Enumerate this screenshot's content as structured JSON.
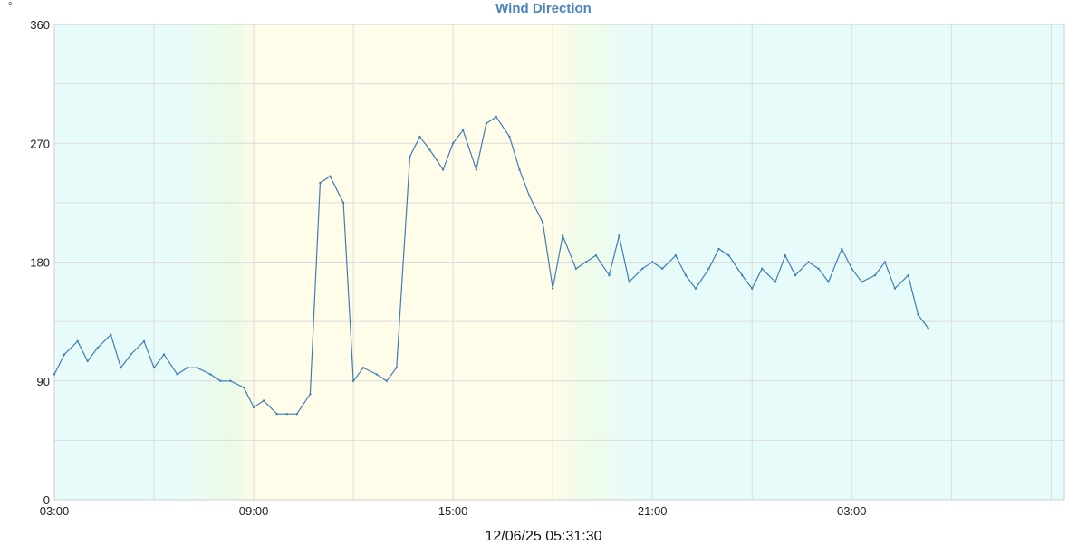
{
  "chart_data": {
    "type": "line",
    "title": "Wind Direction",
    "unit_label": "°",
    "timestamp": "12/06/25 05:31:30",
    "xlabel": "",
    "ylabel": "",
    "ylim": [
      0,
      360
    ],
    "y_ticks": [
      "0",
      "90",
      "180",
      "270",
      "360"
    ],
    "x_range_hours": [
      3.0,
      33.4
    ],
    "x_ticks": [
      {
        "hour": 3,
        "label": "03:00"
      },
      {
        "hour": 9,
        "label": "09:00"
      },
      {
        "hour": 15,
        "label": "15:00"
      },
      {
        "hour": 21,
        "label": "21:00"
      },
      {
        "hour": 27,
        "label": "03:00"
      }
    ],
    "grid": true,
    "colors": {
      "line": "#3f7db5",
      "title": "#4a84bd",
      "grid": "#dcdcdc",
      "night_bg": "#e8fbfb",
      "day_bg": "#fffde9"
    },
    "series": [
      {
        "hours": [
          3.0,
          3.3,
          3.7,
          4.0,
          4.3,
          4.7,
          5.0,
          5.3,
          5.7,
          6.0,
          6.3,
          6.7,
          7.0,
          7.3,
          7.7,
          8.0,
          8.3,
          8.7,
          9.0,
          9.3,
          9.7,
          10.0,
          10.3,
          10.7,
          11.0,
          11.3,
          11.7,
          12.0,
          12.3,
          12.7,
          13.0,
          13.3,
          13.7,
          14.0,
          14.3,
          14.7,
          15.0,
          15.3,
          15.7,
          16.0,
          16.3,
          16.7,
          17.0,
          17.3,
          17.7,
          18.0,
          18.3,
          18.7,
          19.0,
          19.3,
          19.7,
          20.0,
          20.3,
          20.7,
          21.0,
          21.3,
          21.7,
          22.0,
          22.3,
          22.7,
          23.0,
          23.3,
          23.7,
          24.0,
          24.3,
          24.7,
          25.0,
          25.3,
          25.7,
          26.0,
          26.3,
          26.7,
          27.0,
          27.3,
          27.7,
          28.0,
          28.3,
          28.7,
          29.0,
          29.3
        ],
        "values": [
          95,
          110,
          120,
          105,
          115,
          125,
          100,
          110,
          120,
          100,
          110,
          95,
          100,
          100,
          95,
          90,
          90,
          85,
          70,
          75,
          65,
          65,
          65,
          80,
          240,
          245,
          225,
          90,
          100,
          95,
          90,
          100,
          260,
          275,
          265,
          250,
          270,
          280,
          250,
          285,
          290,
          275,
          250,
          230,
          210,
          160,
          200,
          175,
          180,
          185,
          170,
          200,
          165,
          175,
          180,
          175,
          185,
          170,
          160,
          175,
          190,
          185,
          170,
          160,
          175,
          165,
          185,
          170,
          180,
          175,
          165,
          190,
          175,
          165,
          170,
          180,
          160,
          170,
          140,
          130
        ]
      }
    ]
  }
}
